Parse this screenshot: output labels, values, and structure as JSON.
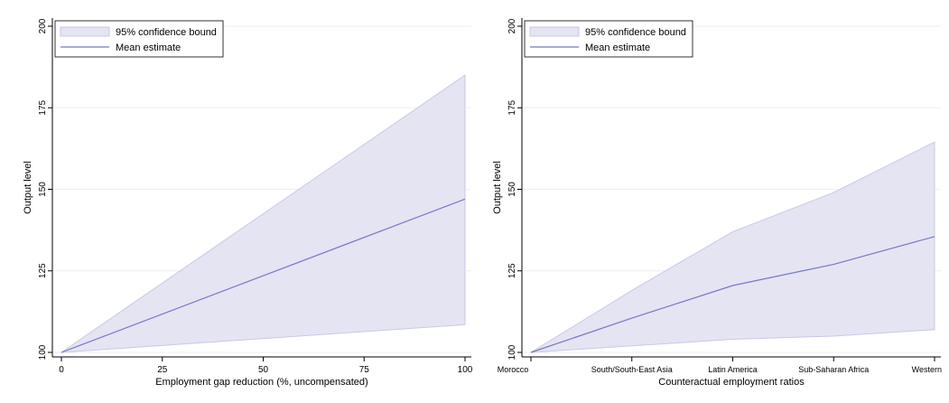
{
  "colors": {
    "band_fill": "#e4e4f3",
    "band_stroke": "#c9c9e6",
    "mean_line": "#7777c8",
    "grid": "#eeeeee",
    "axis": "#000000"
  },
  "chart_data": [
    {
      "type": "area",
      "x_type": "numeric",
      "x": [
        0,
        100
      ],
      "xticks": [
        0,
        25,
        50,
        75,
        100
      ],
      "xlim": [
        0,
        100
      ],
      "ylim": [
        100,
        200
      ],
      "yticks": [
        100,
        125,
        150,
        175,
        200
      ],
      "xlabel": "Employment gap reduction (%, uncompensated)",
      "ylabel": "Output level",
      "grid": true,
      "legend_position": "top-left",
      "series": [
        {
          "name": "95% confidence bound",
          "kind": "band",
          "lower": [
            100,
            108.5
          ],
          "upper": [
            100,
            185
          ]
        },
        {
          "name": "Mean estimate",
          "kind": "line",
          "values": [
            100,
            147
          ]
        }
      ]
    },
    {
      "type": "area",
      "x_type": "categorical",
      "categories": [
        "Morocco",
        "South/South-East Asia",
        "Latin America",
        "Sub-Saharan Africa",
        "Western"
      ],
      "ylim": [
        100,
        200
      ],
      "yticks": [
        100,
        125,
        150,
        175,
        200
      ],
      "xlabel": "Counteractual employment ratios",
      "ylabel": "Output level",
      "grid": true,
      "legend_position": "top-left",
      "series": [
        {
          "name": "95% confidence bound",
          "kind": "band",
          "lower": [
            100,
            102,
            104,
            105,
            107
          ],
          "upper": [
            100,
            119,
            137,
            149,
            164.5
          ]
        },
        {
          "name": "Mean estimate",
          "kind": "line",
          "values": [
            100,
            110.5,
            120.5,
            127,
            135.5
          ]
        }
      ]
    }
  ]
}
